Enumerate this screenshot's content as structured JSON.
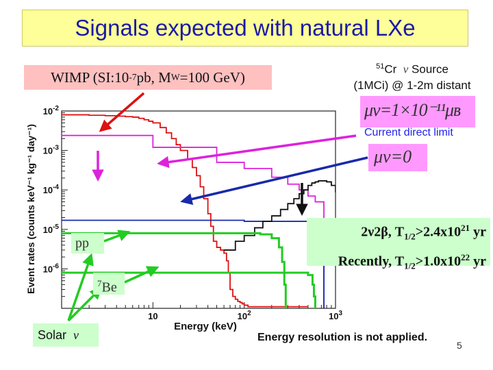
{
  "title": "Signals expected with natural LXe",
  "wimp_label": {
    "prefix": "WIMP (SI:10",
    "exp": "-7",
    "mid": " pb, M",
    "sub": "W",
    "suffix": "=100 GeV)"
  },
  "source_label": {
    "sup": "51",
    "element": "Cr",
    "suffix": " Source",
    "line2": "(1MCi) @ 1-2m distant"
  },
  "mu_label_1": "μν=1×10⁻¹¹μʙ",
  "mu_label_2": "μν=0",
  "direct_limit": "Current direct limit",
  "double_beta": {
    "line1_prefix": "2ν2β, T",
    "line1_sub": "1/2",
    "line1_mid": ">2.4x10",
    "line1_sup": "21",
    "line1_suffix": " yr",
    "line2_prefix": "Recently, T",
    "line2_sub": "1/2",
    "line2_mid": ">1.0x10",
    "line2_sup": "22",
    "line2_suffix": " yr"
  },
  "pp_label": "pp",
  "be_label": {
    "sup": "7",
    "text": "Be"
  },
  "solar_label": "Solar",
  "resolution_note": "Energy resolution is not applied.",
  "page_number": "5",
  "nu_symbol": "ν",
  "chart_data": {
    "type": "line",
    "xlabel": "Energy (keV)",
    "ylabel": "Event rates (counts keV⁻¹ kg⁻¹ day⁻¹)",
    "x_scale": "log",
    "y_scale": "log",
    "xlim": [
      1,
      1000
    ],
    "ylim": [
      1e-07,
      0.01
    ],
    "x_ticks": [
      {
        "value": 10,
        "label": "10"
      },
      {
        "value": 100,
        "label": "10^2"
      },
      {
        "value": 1000,
        "label": "10^3"
      }
    ],
    "y_ticks": [
      {
        "value": 0.01,
        "label": "10^-2"
      },
      {
        "value": 0.001,
        "label": "10^-3"
      },
      {
        "value": 0.0001,
        "label": "10^-4"
      },
      {
        "value": 1e-05,
        "label": "10^-5"
      },
      {
        "value": 1e-06,
        "label": "10^-6"
      }
    ],
    "series": [
      {
        "key": "wimp",
        "color": "#dd1111",
        "x": [
          1,
          2,
          3,
          4,
          5,
          6,
          7,
          8,
          9,
          10,
          12,
          14,
          16,
          18,
          20,
          24,
          27,
          30,
          33,
          36,
          40,
          43,
          46,
          50,
          55,
          60,
          64,
          67,
          70,
          75,
          80,
          85,
          90,
          95,
          100,
          105,
          110,
          120,
          200,
          500
        ],
        "y": [
          0.008,
          0.0078,
          0.0076,
          0.0074,
          0.0072,
          0.007,
          0.0065,
          0.006,
          0.0055,
          0.005,
          0.0038,
          0.0028,
          0.002,
          0.0014,
          0.001,
          0.0006,
          0.00037,
          0.00023,
          0.00012,
          6e-05,
          2.5e-05,
          1.2e-05,
          5e-06,
          3.5e-06,
          3e-06,
          2.5e-06,
          1.6e-06,
          8e-07,
          3e-07,
          2e-07,
          1.7e-07,
          1.5e-07,
          1.4e-07,
          1.3e-07,
          1.2e-07,
          1.2e-07,
          1.1e-07,
          1.1e-07,
          1.1e-07,
          1.1e-07
        ]
      },
      {
        "key": "cr_magnetic",
        "color": "#dd22dd",
        "x": [
          1,
          10,
          50,
          100,
          200,
          300,
          400,
          500,
          600,
          745,
          746
        ],
        "y": [
          0.0024,
          0.0012,
          0.0005,
          0.00035,
          0.00021,
          0.00014,
          0.0001,
          7e-05,
          5e-05,
          4e-05,
          1e-07
        ]
      },
      {
        "key": "cr_zero",
        "color": "#1a2aaa",
        "x": [
          1,
          10,
          100,
          500,
          745,
          746
        ],
        "y": [
          1.7e-05,
          1.7e-05,
          1.6e-05,
          1.6e-05,
          1.6e-05,
          1e-07
        ]
      },
      {
        "key": "double_beta",
        "color": "#111111",
        "x": [
          60,
          80,
          100,
          130,
          160,
          200,
          250,
          300,
          350,
          400,
          450,
          500,
          550,
          600,
          650,
          700,
          800,
          900,
          1000,
          1050,
          1100,
          1150,
          1200,
          1260,
          1300
        ],
        "y": [
          3e-06,
          5e-06,
          7e-06,
          1.1e-05,
          1.6e-05,
          2.2e-05,
          3.2e-05,
          4.5e-05,
          6e-05,
          8e-05,
          0.0001,
          0.00013,
          0.00015,
          0.00016,
          0.00017,
          0.00017,
          0.00016,
          0.00013,
          9e-05,
          6e-05,
          3e-05,
          1e-05,
          3e-06,
          5e-07,
          1e-07
        ]
      },
      {
        "key": "pp",
        "color": "#22cc22",
        "x": [
          1,
          10,
          50,
          100,
          150,
          200,
          240,
          260,
          275,
          285
        ],
        "y": [
          8e-06,
          8e-06,
          8e-06,
          8e-06,
          7.5e-06,
          6e-06,
          3.5e-06,
          1.5e-06,
          4e-07,
          1e-07
        ]
      },
      {
        "key": "be7",
        "color": "#22cc22",
        "x": [
          1,
          10,
          100,
          300,
          400,
          500,
          560,
          580,
          600
        ],
        "y": [
          8e-07,
          8e-07,
          8e-07,
          8e-07,
          8e-07,
          7e-07,
          4e-07,
          2e-07,
          1e-07
        ]
      }
    ]
  }
}
